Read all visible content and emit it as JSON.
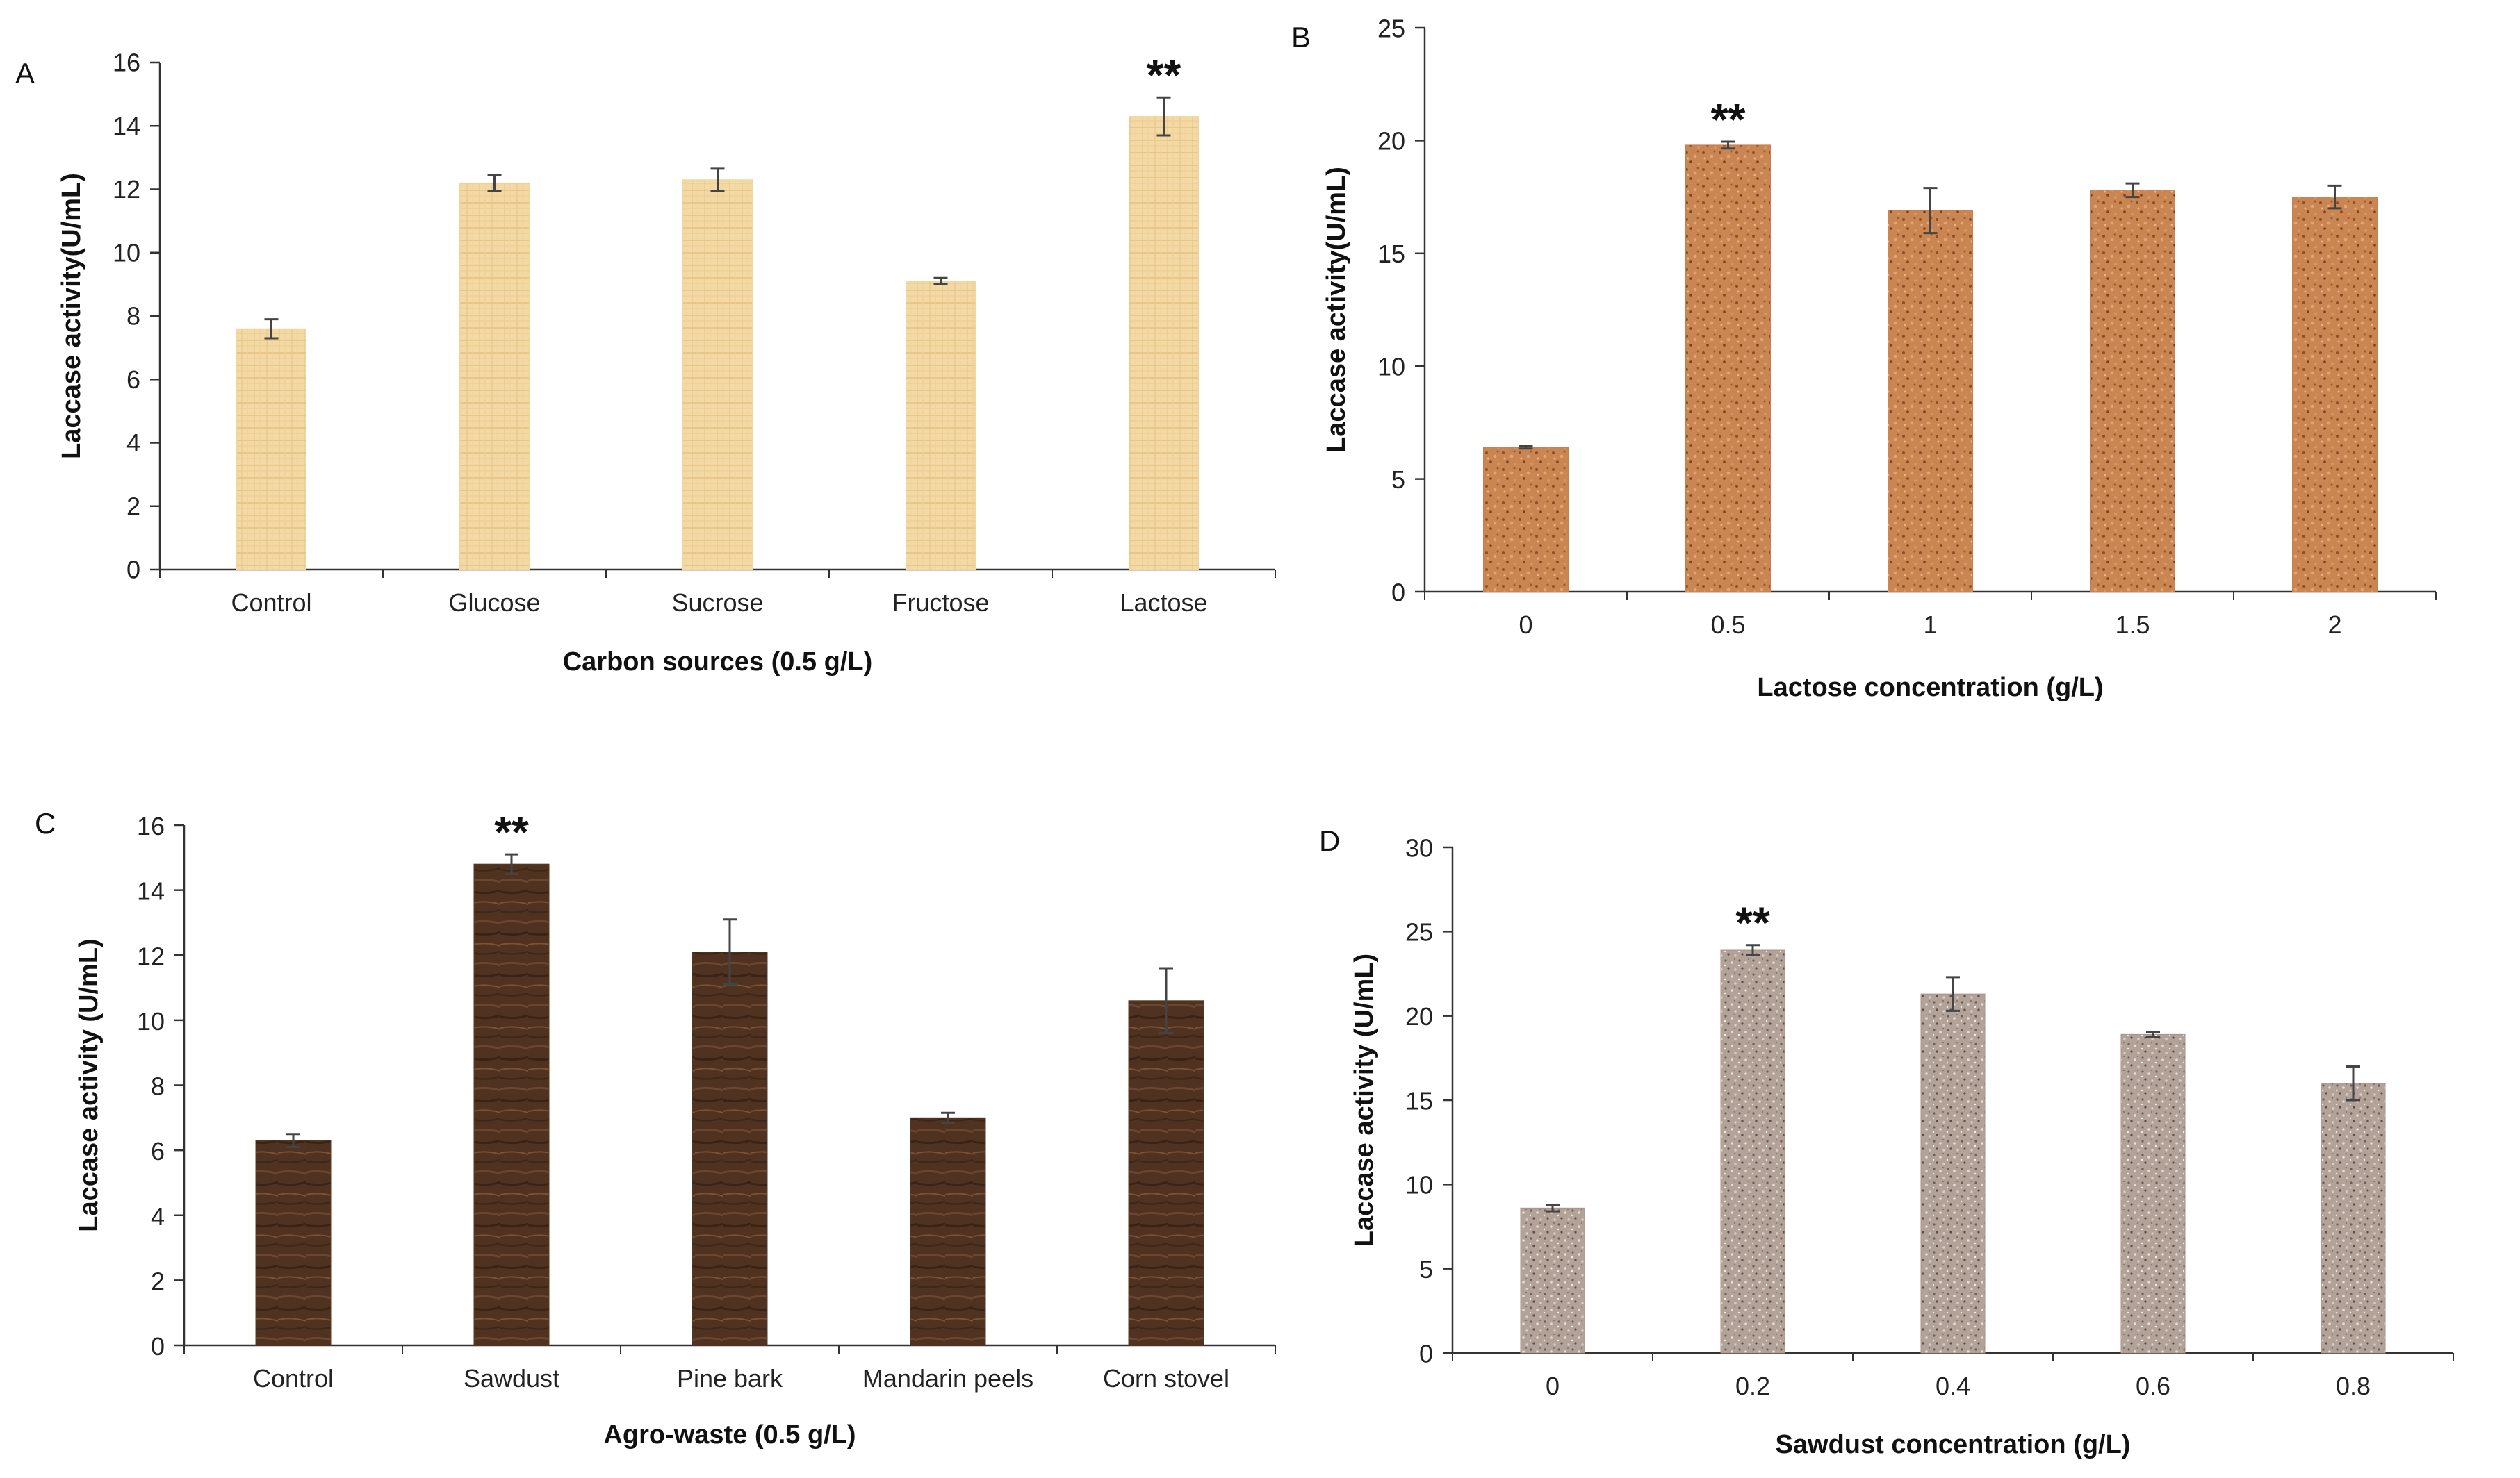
{
  "chart_data": [
    {
      "type": "bar",
      "panel_label": "A",
      "categories": [
        "Control",
        "Glucose",
        "Sucrose",
        "Fructose",
        "Lactose"
      ],
      "values": [
        7.6,
        12.2,
        12.3,
        9.1,
        14.3
      ],
      "errors": [
        0.3,
        0.25,
        0.35,
        0.1,
        0.6
      ],
      "significance": [
        "",
        "",
        "",
        "",
        "**"
      ],
      "xlabel": "Carbon sources (0.5 g/L)",
      "ylabel": "Laccase activity(U/mL)",
      "ylim": [
        0,
        16
      ],
      "yticks": [
        0,
        2,
        4,
        6,
        8,
        10,
        12,
        14,
        16
      ],
      "bar_color": "#f2d59b"
    },
    {
      "type": "bar",
      "panel_label": "B",
      "categories": [
        "0",
        "0.5",
        "1",
        "1.5",
        "2"
      ],
      "values": [
        6.4,
        19.8,
        16.9,
        17.8,
        17.5
      ],
      "errors": [
        0.05,
        0.15,
        1.0,
        0.3,
        0.5
      ],
      "significance": [
        "",
        "**",
        "",
        "",
        ""
      ],
      "xlabel": "Lactose concentration (g/L)",
      "ylabel": "Laccase activity(U/mL)",
      "ylim": [
        0,
        25
      ],
      "yticks": [
        0,
        5,
        10,
        15,
        20,
        25
      ],
      "bar_color": "#c8814e"
    },
    {
      "type": "bar",
      "panel_label": "C",
      "categories": [
        "Control",
        "Sawdust",
        "Pine bark",
        "Mandarin peels",
        "Corn stovel"
      ],
      "values": [
        6.3,
        14.8,
        12.1,
        7.0,
        10.6
      ],
      "errors": [
        0.2,
        0.3,
        1.0,
        0.15,
        1.0
      ],
      "significance": [
        "",
        "**",
        "",
        "",
        ""
      ],
      "xlabel": "Agro-waste (0.5 g/L)",
      "ylabel": "Laccase activity (U/mL)",
      "ylim": [
        0,
        16
      ],
      "yticks": [
        0,
        2,
        4,
        6,
        8,
        10,
        12,
        14,
        16
      ],
      "bar_color": "#5a3a24"
    },
    {
      "type": "bar",
      "panel_label": "D",
      "categories": [
        "0",
        "0.2",
        "0.4",
        "0.6",
        "0.8"
      ],
      "values": [
        8.6,
        23.9,
        21.3,
        18.9,
        16.0
      ],
      "errors": [
        0.2,
        0.3,
        1.0,
        0.15,
        1.0
      ],
      "significance": [
        "",
        "**",
        "",
        "",
        ""
      ],
      "xlabel": "Sawdust concentration (g/L)",
      "ylabel": "Laccase activity (U/mL)",
      "ylim": [
        0,
        30
      ],
      "yticks": [
        0,
        5,
        10,
        15,
        20,
        25,
        30
      ],
      "bar_color": "#a8958a"
    }
  ]
}
